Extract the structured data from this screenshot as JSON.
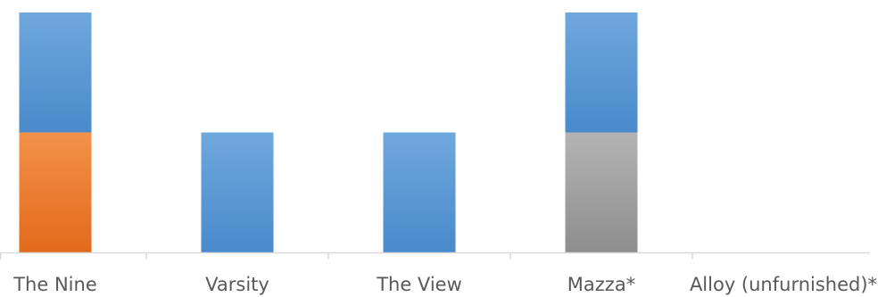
{
  "chart_data": {
    "type": "bar",
    "stacked": true,
    "categories": [
      "The Nine",
      "Varsity",
      "The View",
      "Mazza*",
      "Alloy (unfurnished)*"
    ],
    "ylim": [
      0,
      2
    ],
    "grid": false,
    "segments": [
      [
        {
          "value": 1,
          "color": "#ED7D31"
        },
        {
          "value": 1,
          "color": "#5B9BD5"
        }
      ],
      [
        {
          "value": 1,
          "color": "#5B9BD5"
        }
      ],
      [
        {
          "value": 1,
          "color": "#5B9BD5"
        }
      ],
      [
        {
          "value": 1,
          "color": "#A5A5A5"
        },
        {
          "value": 1,
          "color": "#5B9BD5"
        }
      ],
      []
    ]
  }
}
